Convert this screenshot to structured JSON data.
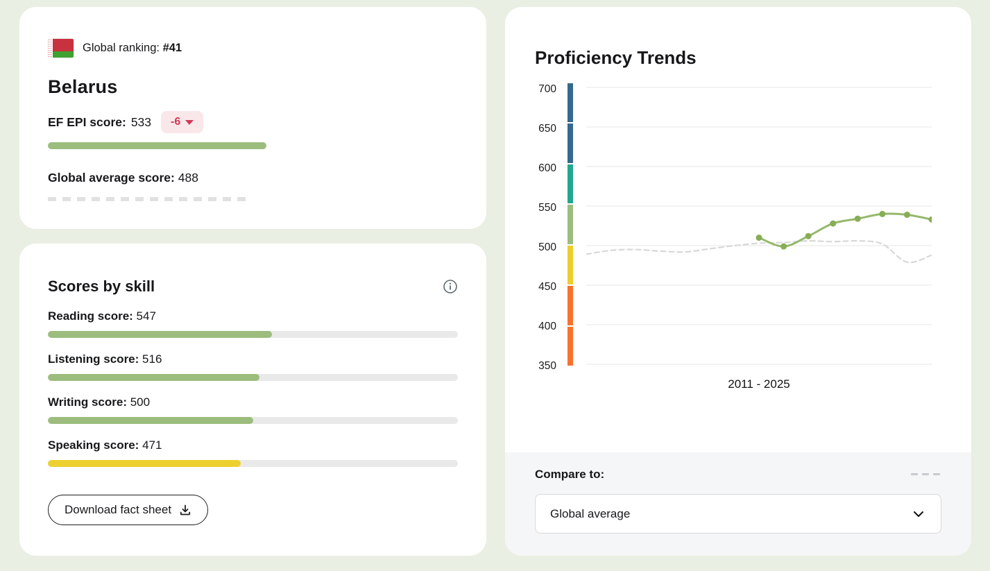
{
  "country_card": {
    "ranking_label": "Global ranking:",
    "ranking_value": "#41",
    "country": "Belarus",
    "score_label": "EF EPI score:",
    "score_value": "533",
    "change_value": "-6",
    "global_avg_label": "Global average score:",
    "global_avg_value": "488",
    "score_bar_color": "#9cbd7d",
    "badge_bg": "#fae7ea",
    "badge_color": "#cf3a57"
  },
  "skills_card": {
    "title": "Scores by skill",
    "skills": [
      {
        "label": "Reading score:",
        "value": 547,
        "color": "#9cbd7d"
      },
      {
        "label": "Listening score:",
        "value": 516,
        "color": "#9cbd7d"
      },
      {
        "label": "Writing score:",
        "value": 500,
        "color": "#9cbd7d"
      },
      {
        "label": "Speaking score:",
        "value": 471,
        "color": "#edd02f"
      }
    ],
    "download_label": "Download fact sheet"
  },
  "trends_card": {
    "title": "Proficiency Trends",
    "xlabel": "2011 - 2025",
    "compare_label": "Compare to:",
    "compare_value": "Global average"
  },
  "chart_data": {
    "type": "line",
    "title": "Proficiency Trends",
    "xlabel": "2011 - 2025",
    "x_range": [
      2011,
      2025
    ],
    "ylim": [
      350,
      700
    ],
    "yticks": [
      700,
      650,
      600,
      550,
      500,
      450,
      400,
      350
    ],
    "grid": true,
    "band_colors": [
      "#35698e",
      "#35698e",
      "#22a78f",
      "#9cbd80",
      "#ecce2e",
      "#f8722f",
      "#f8722f"
    ],
    "series": [
      {
        "name": "Belarus",
        "style": "solid",
        "smooth": true,
        "dots": true,
        "line_color": "#95b96b",
        "dot_color": "#87ad56",
        "x": [
          2018,
          2019,
          2020,
          2021,
          2022,
          2023,
          2024,
          2025
        ],
        "values": [
          510,
          499,
          512,
          528,
          534,
          540,
          539,
          533
        ]
      },
      {
        "name": "Global average",
        "style": "dashed",
        "smooth": true,
        "dots": false,
        "line_color": "#d8d8d8",
        "x": [
          2011,
          2012,
          2013,
          2014,
          2015,
          2016,
          2017,
          2018,
          2019,
          2020,
          2021,
          2022,
          2023,
          2024,
          2025
        ],
        "values": [
          489,
          494,
          495,
          493,
          492,
          496,
          500,
          503,
          504,
          506,
          505,
          506,
          502,
          479,
          488
        ]
      }
    ]
  }
}
